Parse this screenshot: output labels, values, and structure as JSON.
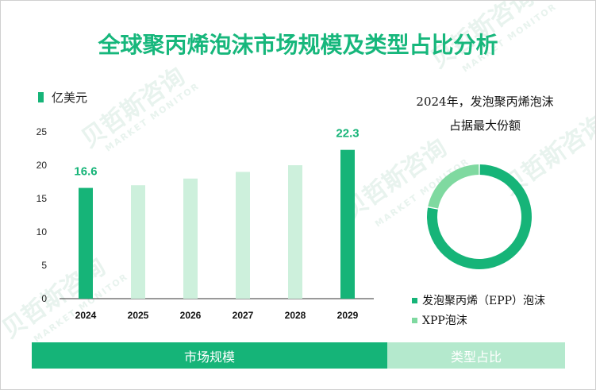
{
  "title": "全球聚丙烯泡沫市场规模及类型占比分析",
  "unit_label": "亿美元",
  "colors": {
    "accent": "#16b478",
    "light_bar": "#cdf0dc",
    "donut_main": "#16b478",
    "donut_minor": "#7fd9a0",
    "tab_market": "#15b478",
    "tab_type": "#b4e9cd"
  },
  "watermark": {
    "cn": "贝哲斯咨询",
    "en": "MARKET MONITOR"
  },
  "chart_data": [
    {
      "type": "bar",
      "title": "",
      "ylabel": "亿美元",
      "categories": [
        "2024",
        "2025",
        "2026",
        "2027",
        "2028",
        "2029"
      ],
      "values": [
        16.6,
        17.0,
        18.0,
        19.0,
        20.0,
        22.3
      ],
      "highlighted": [
        true,
        false,
        false,
        false,
        false,
        true
      ],
      "data_labels": [
        "16.6",
        "",
        "",
        "",
        "",
        "22.3"
      ],
      "ylim": [
        0,
        25
      ],
      "yticks": [
        0,
        5,
        10,
        15,
        20,
        25
      ],
      "grid": false
    },
    {
      "type": "pie",
      "title": "2024年，发泡聚丙烯泡沫",
      "subtitle": "占据最大份额",
      "labels": [
        "发泡聚丙烯（EPP）泡沫",
        "XPP泡沫"
      ],
      "values": [
        78,
        22
      ],
      "colors": [
        "#16b478",
        "#7fd9a0"
      ],
      "legend_position": "bottom"
    }
  ],
  "tabs": [
    {
      "label": "市场规模"
    },
    {
      "label": "类型占比"
    }
  ]
}
